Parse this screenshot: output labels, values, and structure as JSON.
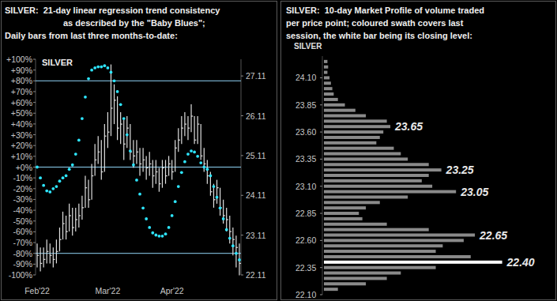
{
  "chart_data": [
    {
      "type": "hlc",
      "title": [
        "SILVER:  21-day linear regression trend consistency",
        "as described by the \"Baby Blues\";",
        "Daily bars from last three months-to-date:"
      ],
      "categories": [
        "Feb'22",
        null,
        null,
        null,
        null,
        null,
        null,
        null,
        null,
        null,
        null,
        null,
        null,
        null,
        null,
        null,
        null,
        null,
        null,
        null,
        null,
        null,
        "Mar'22",
        null,
        null,
        null,
        null,
        null,
        null,
        null,
        null,
        null,
        null,
        null,
        null,
        null,
        null,
        null,
        null,
        null,
        null,
        null,
        "Apr'22",
        null,
        null,
        null,
        null,
        null,
        null,
        null,
        null,
        null,
        null,
        null,
        null,
        null,
        null,
        null,
        null,
        null,
        null,
        null,
        null,
        null
      ],
      "series": [
        {
          "name": "SILVER",
          "type": "hlc",
          "axis": "y2",
          "color": "#e0e0e0",
          "high": [
            22.9,
            22.8,
            22.8,
            23.0,
            22.9,
            22.8,
            23.0,
            23.3,
            23.7,
            23.6,
            23.9,
            23.8,
            23.8,
            23.9,
            24.1,
            24.6,
            24.5,
            24.9,
            25.4,
            25.6,
            25.5,
            25.9,
            26.2,
            27.4,
            26.9,
            26.6,
            26.2,
            26.0,
            26.1,
            25.9,
            25.5,
            25.5,
            25.3,
            25.3,
            25.1,
            25.2,
            25.0,
            25.0,
            24.8,
            25.0,
            25.0,
            25.1,
            25.0,
            25.5,
            25.8,
            26.1,
            26.2,
            26.1,
            26.4,
            26.1,
            26.1,
            25.9,
            25.3,
            25.0,
            24.7,
            24.4,
            24.5,
            24.3,
            24.0,
            23.8,
            23.6,
            23.3,
            23.1,
            22.9
          ],
          "low": [
            22.3,
            22.2,
            22.3,
            22.4,
            22.4,
            22.3,
            22.4,
            22.7,
            23.0,
            23.0,
            23.2,
            23.1,
            23.2,
            23.3,
            23.5,
            23.8,
            23.8,
            24.0,
            24.6,
            24.9,
            24.5,
            24.7,
            25.3,
            25.6,
            25.9,
            25.5,
            25.4,
            25.0,
            25.3,
            25.0,
            24.8,
            24.9,
            24.6,
            24.7,
            24.5,
            24.6,
            24.3,
            24.4,
            24.2,
            24.3,
            24.4,
            24.6,
            24.5,
            24.7,
            25.2,
            25.4,
            25.6,
            25.5,
            25.7,
            25.4,
            25.4,
            25.0,
            24.7,
            24.4,
            24.1,
            23.8,
            23.9,
            23.6,
            23.4,
            23.2,
            22.9,
            22.6,
            22.3,
            22.1
          ],
          "close": [
            22.6,
            22.4,
            22.5,
            22.7,
            22.6,
            22.5,
            22.7,
            23.0,
            23.4,
            23.2,
            23.6,
            23.3,
            23.5,
            23.6,
            23.8,
            24.3,
            24.0,
            24.6,
            25.0,
            25.2,
            24.7,
            25.6,
            25.7,
            26.3,
            26.5,
            25.8,
            25.9,
            25.4,
            25.8,
            25.2,
            25.1,
            25.2,
            24.9,
            25.0,
            24.8,
            24.9,
            24.6,
            24.7,
            24.4,
            24.8,
            24.6,
            24.9,
            24.7,
            25.3,
            25.5,
            25.8,
            25.9,
            25.8,
            26.1,
            25.5,
            25.9,
            25.1,
            24.9,
            24.6,
            24.2,
            24.0,
            24.3,
            23.8,
            23.6,
            23.5,
            23.2,
            23.0,
            22.8,
            22.4
          ]
        },
        {
          "type": "scatter",
          "marker": "circle",
          "color": "#2ee6ff",
          "values": [
            0,
            -10,
            -17,
            -22,
            -23,
            -20,
            -18,
            -13,
            -10,
            -8,
            -2,
            2,
            12,
            25,
            45,
            65,
            82,
            90,
            92,
            93,
            93,
            94,
            92,
            88,
            80,
            70,
            58,
            45,
            30,
            15,
            2,
            -12,
            -25,
            -38,
            -48,
            -56,
            -61,
            -63,
            -64,
            -64,
            -62,
            -56,
            -45,
            -32,
            -18,
            -5,
            5,
            12,
            15,
            14,
            10,
            4,
            0,
            -2,
            -8,
            -18,
            -28,
            -38,
            -48,
            -58,
            -66,
            -73,
            -80,
            -86
          ]
        }
      ],
      "hlines": [
        80,
        0,
        -80
      ],
      "ylim": [
        -100,
        100
      ],
      "yticks": [
        {
          "value": 100,
          "label": "+100%"
        },
        {
          "value": 90,
          "label": "+90%"
        },
        {
          "value": 80,
          "label": "+80%"
        },
        {
          "value": 70,
          "label": "+70%"
        },
        {
          "value": 60,
          "label": "+60%"
        },
        {
          "value": 50,
          "label": "+50%"
        },
        {
          "value": 40,
          "label": "+40%"
        },
        {
          "value": 30,
          "label": "+30%"
        },
        {
          "value": 20,
          "label": "+20%"
        },
        {
          "value": 10,
          "label": "+10%"
        },
        {
          "value": 0,
          "label": "+0%"
        },
        {
          "value": -10,
          "label": "-10%"
        },
        {
          "value": -20,
          "label": "-20%"
        },
        {
          "value": -30,
          "label": "-30%"
        },
        {
          "value": -40,
          "label": "-40%"
        },
        {
          "value": -50,
          "label": "-50%"
        },
        {
          "value": -60,
          "label": "-60%"
        },
        {
          "value": -70,
          "label": "-70%"
        },
        {
          "value": -80,
          "label": "-80%"
        },
        {
          "value": -90,
          "label": "-90%"
        },
        {
          "value": -100,
          "label": "-100%"
        }
      ],
      "y2lim": [
        22.11,
        27.53
      ],
      "y2ticks": [
        22.11,
        23.11,
        24.11,
        25.11,
        26.11,
        27.11
      ]
    },
    {
      "type": "bar",
      "orientation": "horizontal",
      "tick_labels": "y",
      "title": [
        "SILVER:  10-day Market Profile of volume traded",
        "per price point; coloured swath covers last",
        "session, the white bar being its closing level:"
      ],
      "ylabel": "SILVER",
      "y": [
        24.25,
        24.2,
        24.15,
        24.1,
        24.05,
        24.0,
        23.95,
        23.9,
        23.85,
        23.8,
        23.75,
        23.7,
        23.65,
        23.6,
        23.55,
        23.5,
        23.45,
        23.4,
        23.35,
        23.3,
        23.25,
        23.2,
        23.15,
        23.1,
        23.05,
        23.0,
        22.95,
        22.9,
        22.85,
        22.8,
        22.75,
        22.7,
        22.65,
        22.6,
        22.55,
        22.5,
        22.45,
        22.4,
        22.35,
        22.3,
        22.25,
        22.2,
        22.15
      ],
      "values": [
        5,
        6,
        5,
        8,
        10,
        12,
        14,
        20,
        30,
        45,
        60,
        90,
        95,
        85,
        80,
        75,
        100,
        110,
        120,
        150,
        168,
        150,
        140,
        155,
        189,
        120,
        80,
        60,
        50,
        55,
        90,
        150,
        216,
        200,
        170,
        160,
        210,
        255,
        160,
        110,
        90,
        60,
        20
      ],
      "colors": [
        "#8a8a8a",
        "#8a8a8a",
        "#8a8a8a",
        "#8a8a8a",
        "#8a8a8a",
        "#8a8a8a",
        "#8a8a8a",
        "#8a8a8a",
        "#8a8a8a",
        "#8a8a8a",
        "#8a8a8a",
        "#8a8a8a",
        "#8a8a8a",
        "#8a8a8a",
        "#8a8a8a",
        "#8a8a8a",
        "#8a8a8a",
        "#8a8a8a",
        "#8a8a8a",
        "#8a8a8a",
        "#8a8a8a",
        "#8a8a8a",
        "#8a8a8a",
        "#8a8a8a",
        "#8a8a8a",
        "#8a8a8a",
        "#8a8a8a",
        "#8a8a8a",
        "#8a8a8a",
        "#8a8a8a",
        "#8a8a8a",
        "#8a8a8a",
        "#8a8a8a",
        "#8a8a8a",
        "#8a8a8a",
        "#8a8a8a",
        "#8a8a8a",
        "#ffffff",
        "#8a8a8a",
        "#8a8a8a",
        "#8a8a8a",
        "#8a8a8a",
        "#8a8a8a"
      ],
      "xlim": [
        0,
        260
      ],
      "ylim": [
        22.1,
        24.3
      ],
      "yticks": [
        {
          "value": 22.1,
          "label": "22.10"
        },
        22.35,
        {
          "value": 22.6,
          "label": "22.60"
        },
        22.85,
        {
          "value": 23.1,
          "label": "23.10"
        },
        23.35,
        {
          "value": 23.6,
          "label": "23.60"
        },
        23.85,
        {
          "value": 24.1,
          "label": "24.10"
        }
      ],
      "annotations": [
        {
          "y": 23.65,
          "text": "23.65"
        },
        {
          "y": 23.25,
          "text": "23.25"
        },
        {
          "y": 23.05,
          "text": "23.05"
        },
        {
          "y": 22.65,
          "text": "22.65"
        },
        {
          "y": 22.4,
          "text": "22.40"
        }
      ]
    }
  ]
}
